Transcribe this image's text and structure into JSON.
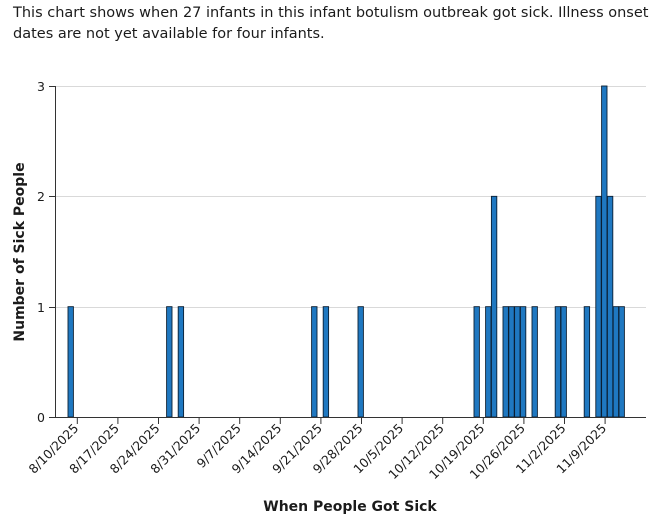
{
  "caption": "This chart shows when 27 infants in this infant botulism outbreak got sick. Illness onset dates are not yet available for four infants.",
  "chart_data": {
    "type": "bar",
    "title": "",
    "xlabel": "When People Got Sick",
    "ylabel": "Number of Sick People",
    "ylim": [
      0,
      3
    ],
    "yticks": [
      0,
      1,
      2,
      3
    ],
    "grid": true,
    "x_start": "8/9/2025",
    "x_end": "11/16/2025",
    "xticks": [
      "8/10/2025",
      "8/17/2025",
      "8/24/2025",
      "8/31/2025",
      "9/7/2025",
      "9/14/2025",
      "9/21/2025",
      "9/28/2025",
      "10/5/2025",
      "10/12/2025",
      "10/19/2025",
      "10/26/2025",
      "11/2/2025",
      "11/9/2025"
    ],
    "dates": [
      "8/9/2025",
      "8/26/2025",
      "8/28/2025",
      "9/20/2025",
      "9/22/2025",
      "9/28/2025",
      "10/18/2025",
      "10/20/2025",
      "10/21/2025",
      "10/23/2025",
      "10/24/2025",
      "10/25/2025",
      "10/26/2025",
      "10/28/2025",
      "11/1/2025",
      "11/2/2025",
      "11/6/2025",
      "11/8/2025",
      "11/9/2025",
      "11/10/2025",
      "11/11/2025",
      "11/12/2025"
    ],
    "values": [
      1,
      1,
      1,
      1,
      1,
      1,
      1,
      1,
      2,
      1,
      1,
      1,
      1,
      1,
      1,
      1,
      1,
      2,
      3,
      2,
      1,
      1
    ]
  }
}
